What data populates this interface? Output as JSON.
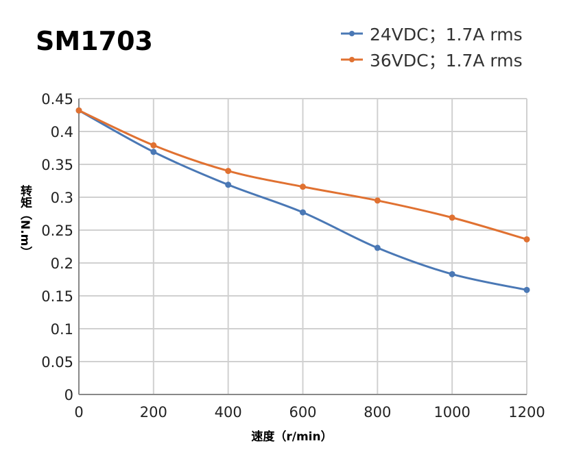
{
  "chart_data": {
    "type": "line",
    "title": "SM1703",
    "xlabel": "速度（r/min）",
    "ylabel": "转矩（N.m）",
    "xlim": [
      0,
      1200
    ],
    "ylim": [
      0,
      0.45
    ],
    "grid": true,
    "legend_position": "top-right",
    "x": [
      0,
      200,
      400,
      600,
      800,
      1000,
      1200
    ],
    "xticks": [
      "0",
      "200",
      "400",
      "600",
      "800",
      "1000",
      "1200"
    ],
    "yticks": [
      "0",
      "0.05",
      "0.1",
      "0.15",
      "0.2",
      "0.25",
      "0.3",
      "0.35",
      "0.4",
      "0.45"
    ],
    "series": [
      {
        "name": "24VDC；1.7A rms",
        "color": "#4a78b5",
        "values": [
          0.432,
          0.369,
          0.319,
          0.277,
          0.223,
          0.183,
          0.159
        ]
      },
      {
        "name": "36VDC；1.7A rms",
        "color": "#e07131",
        "values": [
          0.432,
          0.379,
          0.34,
          0.316,
          0.295,
          0.269,
          0.236
        ]
      }
    ]
  }
}
